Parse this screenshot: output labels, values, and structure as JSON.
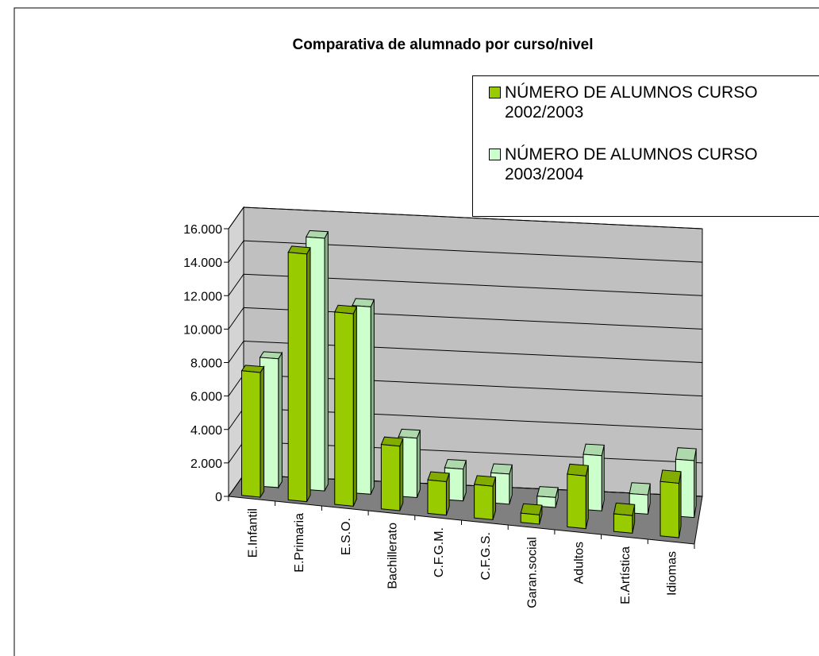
{
  "chart_data": {
    "type": "bar3d",
    "title": "Comparativa de alumnado por curso/nivel",
    "categories": [
      "E.Infantil",
      "E.Primaria",
      "E.S.O.",
      "Bachillerato",
      "C.F.G.M.",
      "C.F.G.S.",
      "Garan.social",
      "Adultos",
      "E.Artística",
      "Idiomas"
    ],
    "series": [
      {
        "name": "NÚMERO DE ALUMNOS CURSO 2002/2003",
        "color": "#99cc00",
        "values": [
          7450,
          14800,
          11500,
          3850,
          2000,
          2000,
          550,
          3150,
          1050,
          3250
        ]
      },
      {
        "name": "NÚMERO DE ALUMNOS CURSO 2003/2004",
        "color": "#ccffcc",
        "values": [
          7700,
          15100,
          11200,
          3550,
          1900,
          1800,
          600,
          3300,
          1150,
          3400
        ]
      }
    ],
    "ylim": [
      0,
      16000
    ],
    "yticks": [
      0,
      {
        "value": 2000,
        "label": "2.000"
      },
      {
        "value": 4000,
        "label": "4.000"
      },
      {
        "value": 6000,
        "label": "6.000"
      },
      {
        "value": 8000,
        "label": "8.000"
      },
      {
        "value": 10000,
        "label": "10.000"
      },
      {
        "value": 12000,
        "label": "12.000"
      },
      {
        "value": 14000,
        "label": "14.000"
      },
      {
        "value": 16000,
        "label": "16.000"
      }
    ],
    "grid": true,
    "legend": "top-right"
  }
}
